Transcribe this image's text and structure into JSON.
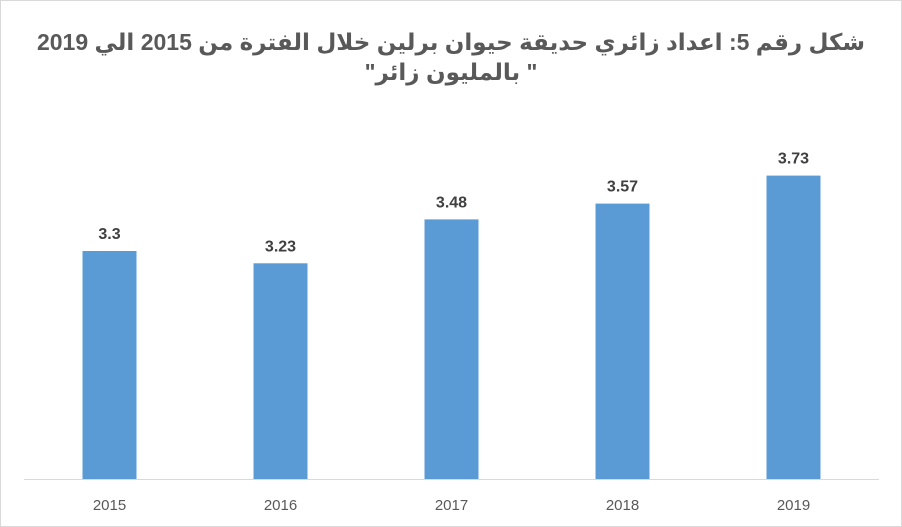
{
  "chart_data": {
    "type": "bar",
    "title": "شكل رقم 5: اعداد زائري حديقة حيوان برلين خلال الفترة من 2015 الي 2019",
    "subtitle": "\" بالمليون زائر\"",
    "categories": [
      "2015",
      "2016",
      "2017",
      "2018",
      "2019"
    ],
    "series": [
      {
        "values": [
          3.3,
          3.23,
          3.48,
          3.57,
          3.73
        ]
      }
    ],
    "data_labels": [
      "3.3",
      "3.23",
      "3.48",
      "3.57",
      "3.73"
    ],
    "xlabel": "",
    "ylabel": "",
    "ylim": [
      2.0,
      3.87
    ],
    "grid": false,
    "legend": "none",
    "colors": {
      "bar": "#5b9bd5",
      "axis": "#d9d9d9",
      "title": "#595959",
      "data_label": "#404040",
      "tick_label": "#595959"
    }
  }
}
